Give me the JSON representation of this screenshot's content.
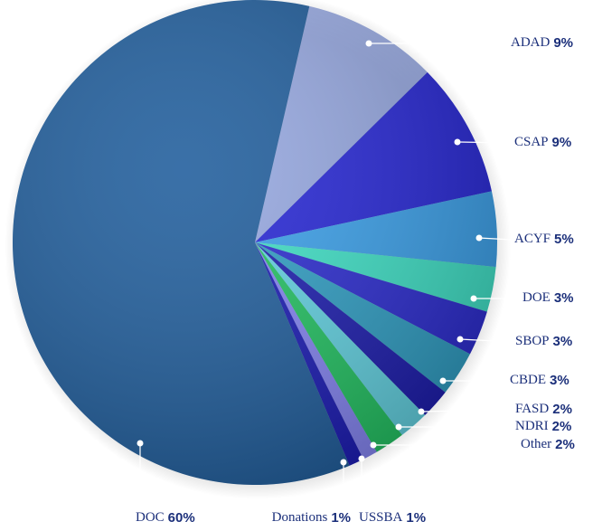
{
  "chart_data": {
    "type": "pie",
    "categories": [
      "ADAD",
      "CSAP",
      "ACYF",
      "DOE",
      "SBOP",
      "CBDE",
      "FASD",
      "NDRI",
      "Other",
      "USSBA",
      "Donations",
      "DOC"
    ],
    "values": [
      9,
      9,
      5,
      3,
      3,
      3,
      2,
      2,
      2,
      1,
      1,
      60
    ],
    "value_labels": [
      "9%",
      "9%",
      "5%",
      "3%",
      "3%",
      "3%",
      "2%",
      "2%",
      "2%",
      "1%",
      "1%",
      "60%"
    ],
    "colors": [
      "#8ea3e6",
      "#2626d6",
      "#3aa0ea",
      "#3ee0c6",
      "#2b2bd0",
      "#2f9ec4",
      "#1c1cae",
      "#62d2e2",
      "#22c262",
      "#8484f2",
      "#1a1ab4",
      "#1f5d9c"
    ]
  }
}
